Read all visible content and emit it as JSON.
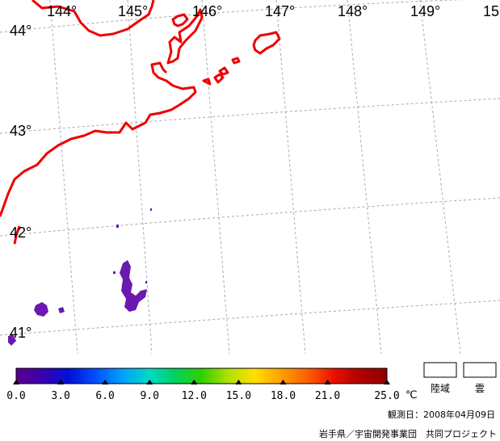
{
  "map": {
    "longitudes": [
      "144°",
      "145°",
      "146°",
      "147°",
      "148°",
      "149°",
      "15"
    ],
    "latitudes": [
      "44°",
      "43°",
      "42°",
      "41°"
    ]
  },
  "colorbar": {
    "ticks": [
      "0.0",
      "3.0",
      "6.0",
      "9.0",
      "12.0",
      "15.0",
      "18.0",
      "21.0",
      "25.0"
    ],
    "unit": "℃",
    "stops": [
      "#5a008c",
      "#3a00b0",
      "#0010d8",
      "#0050ff",
      "#00a0ff",
      "#00d8c8",
      "#00d060",
      "#30d000",
      "#b0e000",
      "#ffe000",
      "#ffa000",
      "#ff6000",
      "#e81000",
      "#b00000",
      "#900000"
    ]
  },
  "legend_boxes": [
    {
      "label": "陸域"
    },
    {
      "label": "雲"
    }
  ],
  "observation_date": "観測日：2008年04月09日",
  "credit": "岩手県／宇宙開発事業団　共同プロジェクト",
  "colors": {
    "coastline": "#ee0000",
    "grid": "#a8a8a8",
    "sst_low": "#6a1ab0"
  }
}
